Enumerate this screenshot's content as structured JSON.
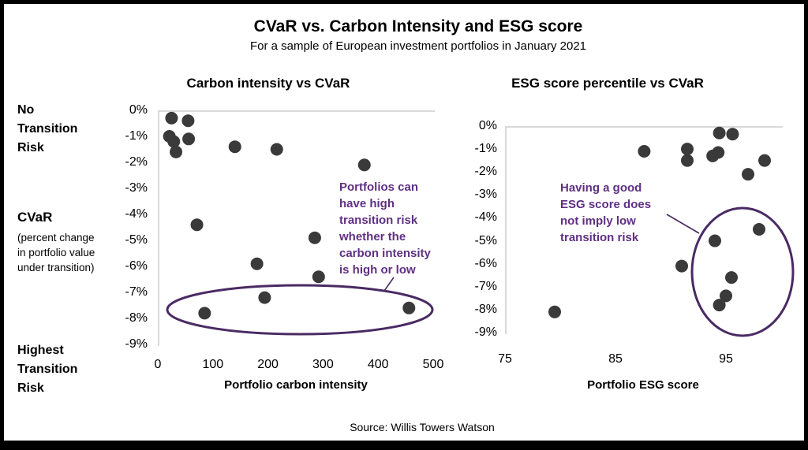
{
  "page": {
    "title": "CVaR vs. Carbon Intensity and ESG score",
    "subtitle": "For a sample of European investment portfolios in January 2021",
    "source": "Source: Willis Towers Watson"
  },
  "side_labels": {
    "top": "No\nTransition\nRisk",
    "cvar_title": "CVaR",
    "cvar_desc": "(percent change\nin portfolio value\nunder transition)",
    "bottom": "Highest\nTransition\nRisk"
  },
  "colors": {
    "dot": "#3a3a3a",
    "annotation_text": "#5f3083",
    "ellipse": "#4a2a63",
    "axis_line": "#d9d9d9",
    "text": "#000000"
  },
  "chart_data": [
    {
      "type": "scatter",
      "title": "Carbon intensity vs CVaR",
      "xlabel": "Portfolio carbon intensity",
      "ylabel": "CVaR (percent change in portfolio value under transition)",
      "xlim": [
        0,
        500
      ],
      "ylim": [
        -9,
        0
      ],
      "x_ticks": [
        0,
        100,
        200,
        300,
        400,
        500
      ],
      "y_tick_labels": [
        "0%",
        "-1%",
        "-2%",
        "-3%",
        "-4%",
        "-5%",
        "-6%",
        "-7%",
        "-8%",
        "-9%"
      ],
      "y_tick_values": [
        0,
        -1,
        -2,
        -3,
        -4,
        -5,
        -6,
        -7,
        -8,
        -9
      ],
      "grid": false,
      "points": [
        [
          25,
          -0.3
        ],
        [
          55,
          -0.4
        ],
        [
          21,
          -1.0
        ],
        [
          29,
          -1.2
        ],
        [
          56,
          -1.1
        ],
        [
          33,
          -1.6
        ],
        [
          140,
          -1.4
        ],
        [
          216,
          -1.5
        ],
        [
          375,
          -2.1
        ],
        [
          71,
          -4.4
        ],
        [
          285,
          -4.9
        ],
        [
          180,
          -5.9
        ],
        [
          292,
          -6.4
        ],
        [
          194,
          -7.2
        ],
        [
          85,
          -7.8
        ],
        [
          456,
          -7.6
        ]
      ],
      "annotation": "Portfolios can\nhave high\ntransition risk\nwhether the\ncarbon intensity\nis high or low"
    },
    {
      "type": "scatter",
      "title": "ESG score percentile vs CVaR",
      "xlabel": "Portfolio ESG score",
      "ylabel": "CVaR (percent change in portfolio value under transition)",
      "xlim": [
        75,
        100
      ],
      "ylim": [
        -9,
        0
      ],
      "x_ticks": [
        75,
        85,
        95
      ],
      "y_tick_labels": [
        "0%",
        "-1%",
        "-2%",
        "-3%",
        "-4%",
        "-5%",
        "-6%",
        "-7%",
        "-8%",
        "-9%"
      ],
      "y_tick_values": [
        0,
        -1,
        -2,
        -3,
        -4,
        -5,
        -6,
        -7,
        -8,
        -9
      ],
      "grid": false,
      "points": [
        [
          94.4,
          -0.3
        ],
        [
          95.6,
          -0.35
        ],
        [
          87.6,
          -1.1
        ],
        [
          91.5,
          -1.0
        ],
        [
          91.5,
          -1.5
        ],
        [
          93.8,
          -1.3
        ],
        [
          94.3,
          -1.15
        ],
        [
          98.5,
          -1.5
        ],
        [
          97,
          -2.1
        ],
        [
          98,
          -4.5
        ],
        [
          94,
          -5.0
        ],
        [
          91,
          -6.1
        ],
        [
          95.5,
          -6.6
        ],
        [
          95,
          -7.4
        ],
        [
          94.4,
          -7.8
        ],
        [
          79.5,
          -8.1
        ]
      ],
      "annotation": "Having a good\nESG score does\nnot imply low\ntransition risk"
    }
  ]
}
